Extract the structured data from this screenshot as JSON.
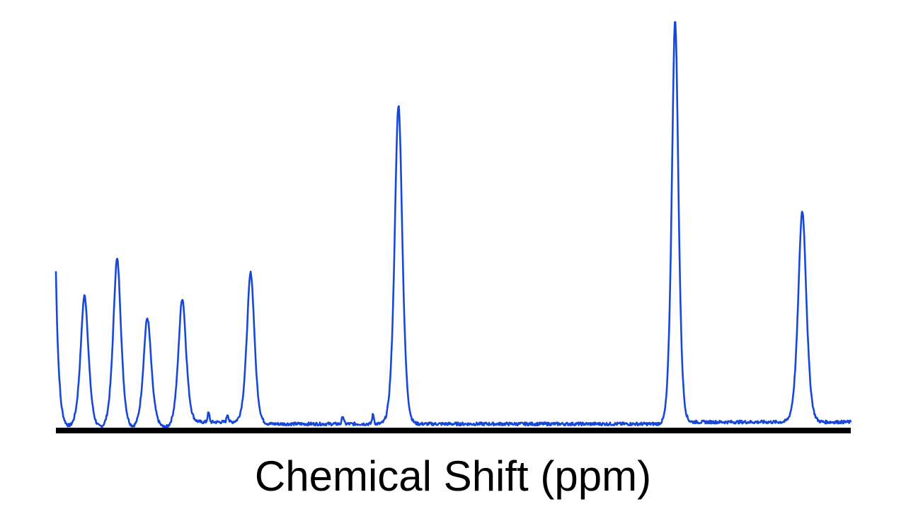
{
  "chart_data": {
    "type": "line",
    "title": "",
    "xlabel": "Chemical Shift (ppm)",
    "ylabel": "",
    "grid": false,
    "legend": "none",
    "x_direction": "descending",
    "xlim": [
      0,
      100
    ],
    "ylim": [
      0,
      100
    ],
    "line_color": "#1747D8",
    "axis_color": "#000000",
    "series": [
      {
        "peaks": [
          {
            "x": 3.6,
            "height": 81.2,
            "width": 0.75
          },
          {
            "x": 7.7,
            "height": 104.8,
            "width": 0.75
          },
          {
            "x": 11.5,
            "height": 66.9,
            "width": 0.75
          },
          {
            "x": 15.9,
            "height": 79.4,
            "width": 0.75
          },
          {
            "x": 24.5,
            "height": 95.9,
            "width": 0.75
          },
          {
            "x": 43.1,
            "height": 204.8,
            "width": 0.75
          },
          {
            "x": 77.9,
            "height": 258.0,
            "width": 0.65
          },
          {
            "x": 93.9,
            "height": 135.6,
            "width": 0.8
          }
        ],
        "minor_peaks": [
          {
            "x": 19.2,
            "height": 6.0
          },
          {
            "x": 21.6,
            "height": 5.0
          },
          {
            "x": 36.1,
            "height": 5.0
          },
          {
            "x": 39.9,
            "height": 6.0
          }
        ],
        "left_edge_height": 97.0
      }
    ]
  }
}
